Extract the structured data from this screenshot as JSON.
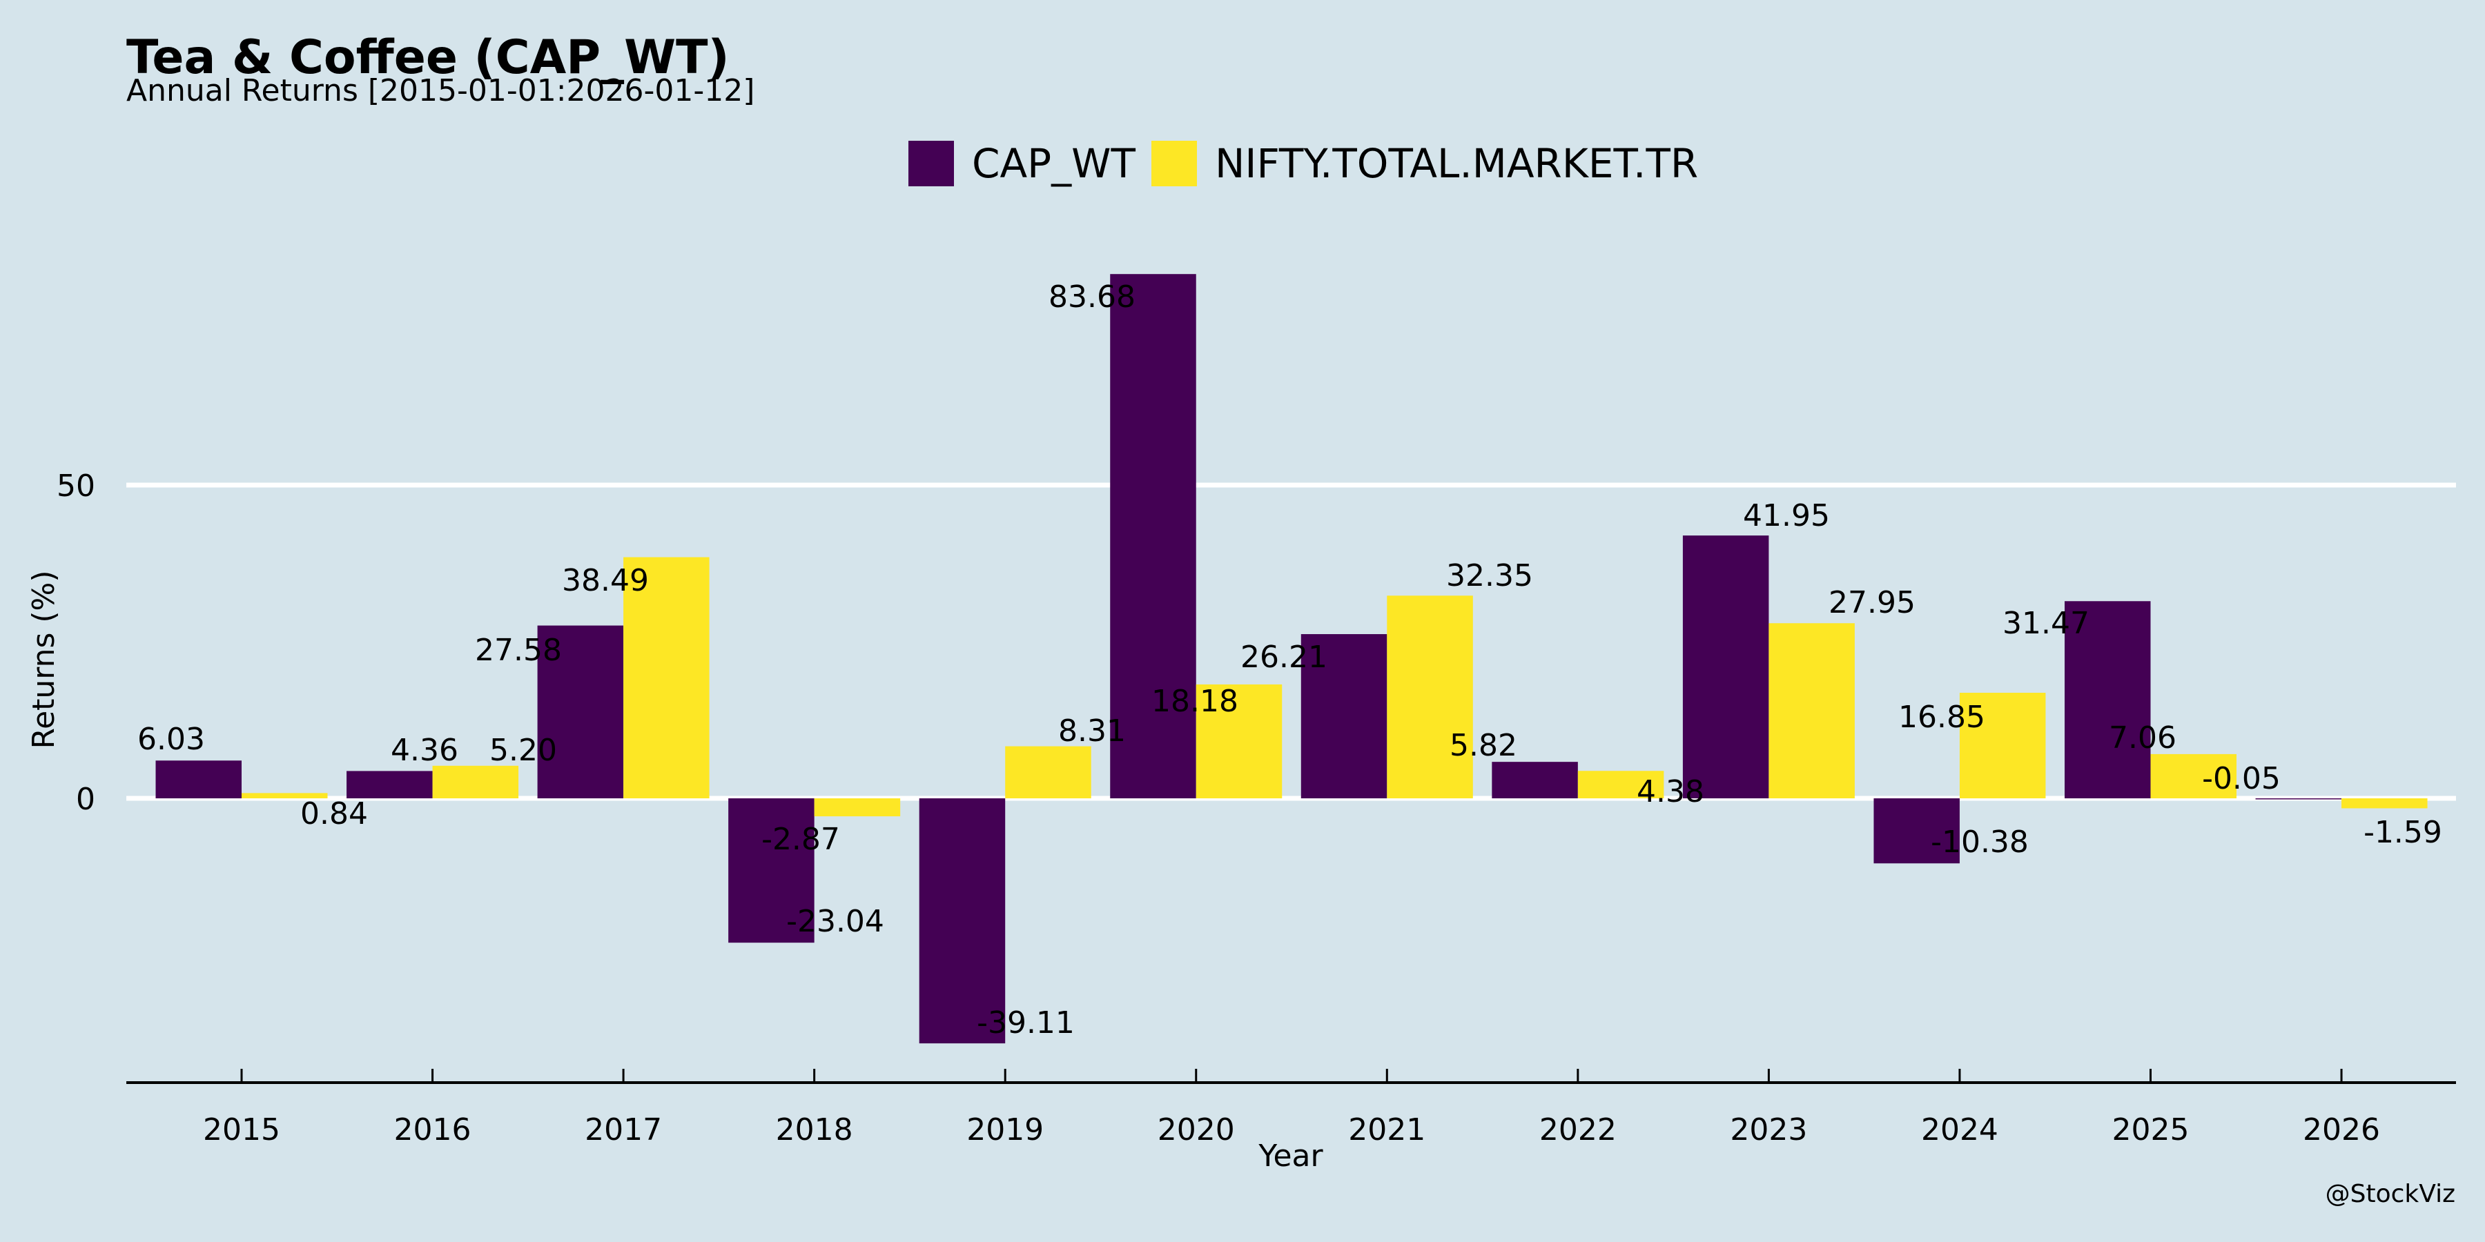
{
  "chart_data": {
    "type": "bar",
    "title": "Tea & Coffee (CAP_WT)",
    "subtitle": "Annual Returns [2015-01-01:2026-01-12]",
    "xlabel": "Year",
    "ylabel": "Returns (%)",
    "categories": [
      "2015",
      "2016",
      "2017",
      "2018",
      "2019",
      "2020",
      "2021",
      "2022",
      "2023",
      "2024",
      "2025",
      "2026"
    ],
    "series": [
      {
        "name": "CAP_WT",
        "color": "#440154",
        "values": [
          6.03,
          4.36,
          27.58,
          -23.04,
          -39.11,
          83.68,
          26.21,
          5.82,
          41.95,
          -10.38,
          31.47,
          -0.05
        ],
        "labels": [
          "6.03",
          "4.36",
          "27.58",
          "-23.04",
          "-39.11",
          "83.68",
          "26.21",
          "5.82",
          "41.95",
          "-10.38",
          "31.47",
          "-0.05"
        ]
      },
      {
        "name": "NIFTY.TOTAL.MARKET.TR",
        "color": "#FDE725",
        "values": [
          0.84,
          5.2,
          38.49,
          -2.87,
          8.31,
          18.18,
          32.35,
          4.38,
          27.95,
          16.85,
          7.06,
          -1.59
        ],
        "labels": [
          "0.84",
          "5.20",
          "38.49",
          "-2.87",
          "8.31",
          "18.18",
          "32.35",
          "4.38",
          "27.95",
          "16.85",
          "7.06",
          "-1.59"
        ]
      }
    ],
    "yticks": [
      0,
      50
    ],
    "ytick_labels": [
      "0",
      "50"
    ],
    "ylim": [
      -45.4,
      92
    ],
    "grid": "horizontal",
    "legend": "top-center",
    "watermark": "@StockViz",
    "colors": {
      "background": "#D5E4EB",
      "grid": "#FFFFFF",
      "axis": "#000000"
    }
  }
}
